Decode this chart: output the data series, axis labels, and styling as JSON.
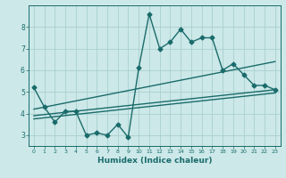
{
  "xlabel": "Humidex (Indice chaleur)",
  "bg_color": "#cce8e8",
  "line_color": "#1a6b6b",
  "grid_color": "#aacfcf",
  "x_ticks": [
    0,
    1,
    2,
    3,
    4,
    5,
    6,
    7,
    8,
    9,
    10,
    11,
    12,
    13,
    14,
    15,
    16,
    17,
    18,
    19,
    20,
    21,
    22,
    23
  ],
  "y_ticks": [
    3,
    4,
    5,
    6,
    7,
    8
  ],
  "ylim": [
    2.5,
    9.0
  ],
  "xlim": [
    -0.5,
    23.5
  ],
  "series": [
    {
      "x": [
        0,
        1,
        2,
        3,
        4,
        5,
        6,
        7,
        8,
        9,
        10,
        11,
        12,
        13,
        14,
        15,
        16,
        17,
        18,
        19,
        20,
        21,
        22,
        23
      ],
      "y": [
        5.2,
        4.3,
        3.6,
        4.1,
        4.1,
        3.0,
        3.1,
        3.0,
        3.5,
        2.9,
        6.1,
        8.6,
        7.0,
        7.3,
        7.9,
        7.3,
        7.5,
        7.5,
        6.0,
        6.3,
        5.8,
        5.3,
        5.3,
        5.1
      ],
      "marker": "D",
      "markersize": 2.5,
      "linewidth": 1.0
    },
    {
      "x": [
        0,
        23
      ],
      "y": [
        4.2,
        6.4
      ],
      "marker": null,
      "linewidth": 1.0
    },
    {
      "x": [
        0,
        23
      ],
      "y": [
        3.9,
        5.1
      ],
      "marker": null,
      "linewidth": 1.0
    },
    {
      "x": [
        0,
        23
      ],
      "y": [
        3.75,
        4.95
      ],
      "marker": null,
      "linewidth": 1.0
    }
  ]
}
